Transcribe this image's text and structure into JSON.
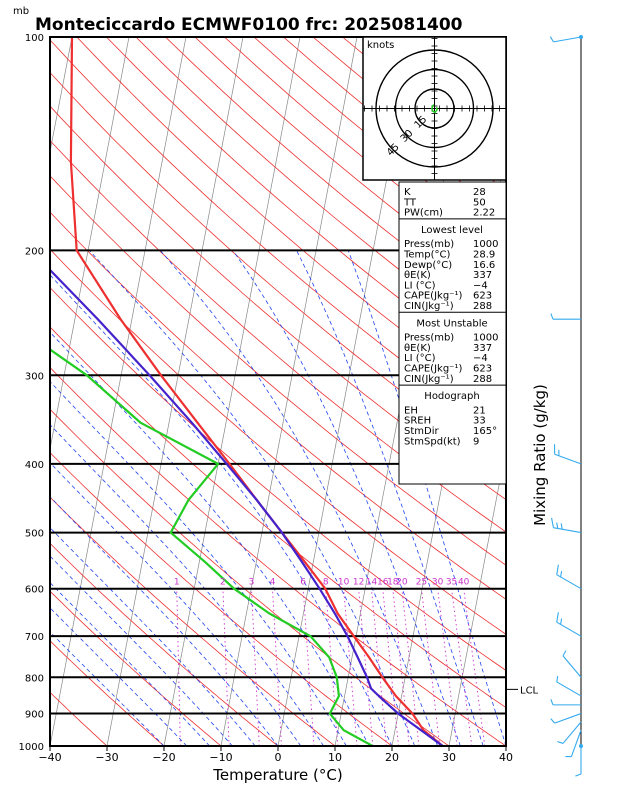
{
  "title": "Monteciccardo ECMWF0100  frc: 2025081400",
  "pressure_unit": "mb",
  "x_axis_label": "Temperature  (°C)",
  "right_axis_label": "Mixing Ratio  (g/kg)",
  "hodograph": {
    "unit_label": "knots",
    "ring_labels": [
      "15",
      "30",
      "45"
    ]
  },
  "indices": {
    "rows": [
      {
        "label": "K",
        "value": "28"
      },
      {
        "label": "TT",
        "value": "50"
      },
      {
        "label": "PW(cm)",
        "value": "2.22"
      }
    ]
  },
  "lowest_level": {
    "heading": "Lowest level",
    "rows": [
      {
        "label": "Press(mb)",
        "value": "1000"
      },
      {
        "label": "Temp(°C)",
        "value": "28.9"
      },
      {
        "label": "Dewp(°C)",
        "value": "16.6"
      },
      {
        "label": "θE(K)",
        "value": "337"
      },
      {
        "label": "LI  (°C)",
        "value": "−4"
      },
      {
        "label": "CAPE(Jkg⁻¹)",
        "value": "623"
      },
      {
        "label": "CIN(Jkg⁻¹)",
        "value": "288"
      }
    ]
  },
  "most_unstable": {
    "heading": "Most Unstable",
    "rows": [
      {
        "label": "Press(mb)",
        "value": "1000"
      },
      {
        "label": "θE(K)",
        "value": "337"
      },
      {
        "label": "LI  (°C)",
        "value": "−4"
      },
      {
        "label": "CAPE(Jkg⁻¹)",
        "value": "623"
      },
      {
        "label": "CIN(Jkg⁻¹)",
        "value": "288"
      }
    ]
  },
  "hodograph_params": {
    "heading": "Hodograph",
    "rows": [
      {
        "label": "EH",
        "value": "21"
      },
      {
        "label": "SREH",
        "value": "33"
      },
      {
        "label": "StmDir",
        "value": "165°"
      },
      {
        "label": "StmSpd(kt)",
        "value": "9"
      }
    ]
  },
  "lcl_label": "LCL",
  "colors": {
    "temperature": "#ee3030",
    "dewpoint": "#22cc22",
    "parcel": "#4422cc",
    "dry_adiabat": "#ee3030",
    "moist_adiabat": "#2244ee",
    "mixing_ratio": "#cc33cc",
    "isotherm": "#888888",
    "wind_barb": "#33aaee",
    "axis": "#000000"
  },
  "chart_data": {
    "type": "line",
    "chart_kind": "skew-T log-P",
    "xlim": [
      -40,
      40
    ],
    "ylim_pressure": [
      1000,
      100
    ],
    "x_ticks": [
      -40,
      -30,
      -20,
      -10,
      0,
      10,
      20,
      30,
      40
    ],
    "x_tick_labels": [
      "−40",
      "−30",
      "−20",
      "−10",
      "0",
      "10",
      "20",
      "30",
      "40"
    ],
    "pressure_levels": [
      100,
      200,
      300,
      400,
      500,
      600,
      700,
      800,
      900,
      1000
    ],
    "pressure_labels": [
      "100",
      "200",
      "300",
      "400",
      "500",
      "600",
      "700",
      "800",
      "900",
      "1000"
    ],
    "mixing_ratio_values": [
      1,
      2,
      3,
      4,
      6,
      8,
      10,
      12,
      14,
      16,
      18,
      20,
      25,
      30,
      35,
      40
    ],
    "mixing_ratio_labels": [
      "1",
      "2",
      "3",
      "4",
      "6",
      "8",
      "10",
      "12",
      "14",
      "16",
      "18",
      "20",
      "25",
      "30",
      "35",
      "40"
    ],
    "series": [
      {
        "key": "temperature",
        "points": [
          [
            1000,
            28.9
          ],
          [
            950,
            25
          ],
          [
            900,
            22.5
          ],
          [
            850,
            19
          ],
          [
            800,
            16
          ],
          [
            750,
            13
          ],
          [
            700,
            9.6
          ],
          [
            650,
            6
          ],
          [
            600,
            3
          ],
          [
            550,
            -1.5
          ],
          [
            500,
            -6.5
          ],
          [
            450,
            -12
          ],
          [
            400,
            -18
          ],
          [
            350,
            -25
          ],
          [
            300,
            -33
          ],
          [
            250,
            -42
          ],
          [
            200,
            -52
          ],
          [
            150,
            -56
          ],
          [
            100,
            -60
          ]
        ]
      },
      {
        "key": "dewpoint",
        "points": [
          [
            1000,
            16.6
          ],
          [
            950,
            11
          ],
          [
            900,
            8
          ],
          [
            850,
            9
          ],
          [
            800,
            8
          ],
          [
            750,
            6
          ],
          [
            700,
            2
          ],
          [
            650,
            -6
          ],
          [
            600,
            -13
          ],
          [
            550,
            -19
          ],
          [
            500,
            -26
          ],
          [
            450,
            -24
          ],
          [
            400,
            -20
          ],
          [
            350,
            -35
          ],
          [
            300,
            -46
          ],
          [
            250,
            -62
          ],
          [
            200,
            -65
          ],
          [
            150,
            -70
          ],
          [
            100,
            -76
          ]
        ]
      },
      {
        "key": "parcel",
        "points": [
          [
            1000,
            28.9
          ],
          [
            900,
            20
          ],
          [
            850,
            16
          ],
          [
            830,
            14.4
          ],
          [
            800,
            13.3
          ],
          [
            750,
            11
          ],
          [
            700,
            8.5
          ],
          [
            650,
            5.5
          ],
          [
            600,
            2
          ],
          [
            550,
            -2
          ],
          [
            500,
            -6.5
          ],
          [
            450,
            -12
          ],
          [
            400,
            -18.5
          ],
          [
            350,
            -26
          ],
          [
            300,
            -35
          ],
          [
            250,
            -46
          ],
          [
            200,
            -60
          ],
          [
            150,
            -75
          ],
          [
            120,
            -85
          ]
        ]
      }
    ],
    "wind_profile": [
      {
        "pressure": 1000,
        "dir_deg": 180,
        "speed_kt": 3
      },
      {
        "pressure": 950,
        "dir_deg": 200,
        "speed_kt": 5
      },
      {
        "pressure": 925,
        "dir_deg": 220,
        "speed_kt": 6
      },
      {
        "pressure": 900,
        "dir_deg": 250,
        "speed_kt": 5
      },
      {
        "pressure": 875,
        "dir_deg": 270,
        "speed_kt": 6
      },
      {
        "pressure": 850,
        "dir_deg": 300,
        "speed_kt": 5
      },
      {
        "pressure": 800,
        "dir_deg": 320,
        "speed_kt": 6
      },
      {
        "pressure": 700,
        "dir_deg": 300,
        "speed_kt": 8
      },
      {
        "pressure": 600,
        "dir_deg": 300,
        "speed_kt": 12
      },
      {
        "pressure": 500,
        "dir_deg": 280,
        "speed_kt": 14
      },
      {
        "pressure": 400,
        "dir_deg": 290,
        "speed_kt": 10
      },
      {
        "pressure": 250,
        "dir_deg": 270,
        "speed_kt": 3
      },
      {
        "pressure": 100,
        "dir_deg": 260,
        "speed_kt": 6
      }
    ],
    "hodograph_trace": [
      [
        -0.5,
        -3
      ],
      [
        -1.5,
        -2
      ],
      [
        -2,
        0
      ],
      [
        -1.5,
        2
      ],
      [
        0.5,
        3
      ],
      [
        2,
        1
      ],
      [
        1.5,
        -1
      ]
    ],
    "lcl_pressure": 832
  }
}
